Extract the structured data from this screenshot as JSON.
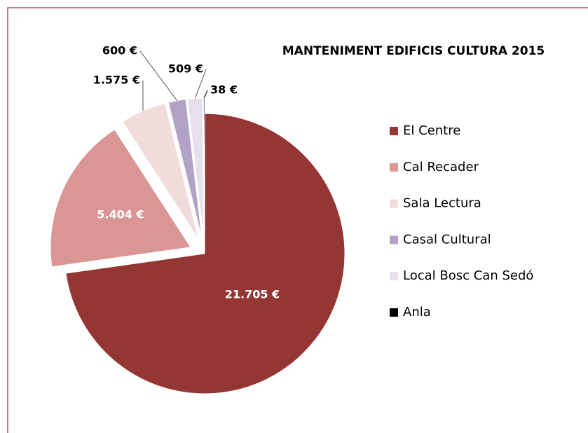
{
  "chart_data": {
    "type": "pie",
    "title": "MANTENIMENT EDIFICIS CULTURA 2015",
    "categories": [
      "El Centre",
      "Cal Recader",
      "Sala Lectura",
      "Casal Cultural",
      "Local Bosc Can Sedó",
      "Anla"
    ],
    "values": [
      21705,
      5404,
      1575,
      600,
      509,
      38
    ],
    "value_labels": [
      "21.705 €",
      "5.404 €",
      "1.575 €",
      "600 €",
      "509 €",
      "38 €"
    ],
    "colors": [
      "#943634",
      "#d99694",
      "#f2dcdb",
      "#b3a2c7",
      "#e6e0ec",
      "#000000"
    ],
    "legend": "right"
  }
}
